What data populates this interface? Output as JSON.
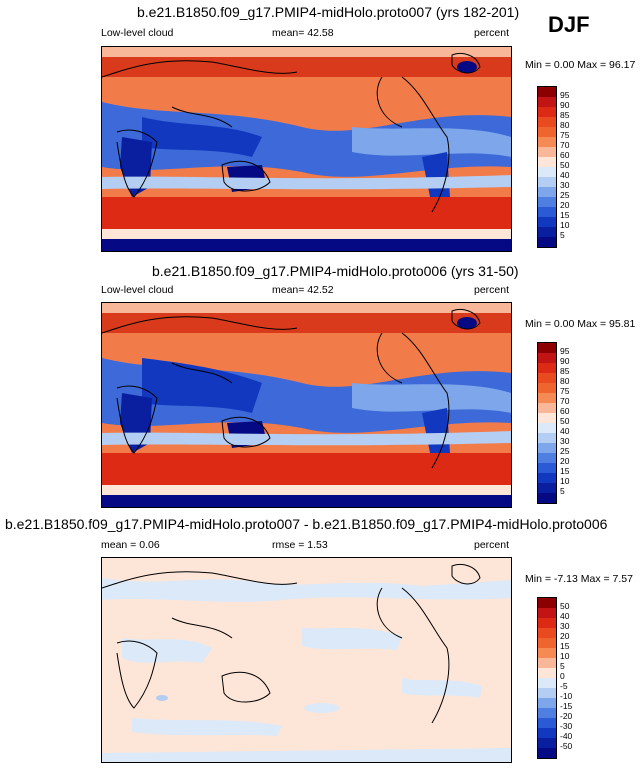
{
  "season": "DJF",
  "panels": [
    {
      "title": "b.e21.B1850.f09_g17.PMIP4-midHolo.proto007 (yrs 182-201)",
      "left_label": "Low-level cloud",
      "center_label": "mean=  42.58",
      "right_label": "percent",
      "minmax": "Min =   0.00 Max =  96.17",
      "colorbar_ticks": [
        "95",
        "90",
        "85",
        "80",
        "75",
        "70",
        "60",
        "50",
        "40",
        "30",
        "25",
        "20",
        "15",
        "10",
        "5"
      ],
      "colorbar_colors": [
        "#8b0000",
        "#c21414",
        "#dc2a14",
        "#ea4a1f",
        "#f0652f",
        "#f58a55",
        "#f9b79a",
        "#fde6d8",
        "#dce9f9",
        "#b4cdf2",
        "#7ea6ea",
        "#4f7fe0",
        "#2a5ad4",
        "#1338c0",
        "#0a1fa0",
        "#050a84"
      ]
    },
    {
      "title": "b.e21.B1850.f09_g17.PMIP4-midHolo.proto006 (yrs 31-50)",
      "left_label": "Low-level cloud",
      "center_label": "mean=  42.52",
      "right_label": "percent",
      "minmax": "Min =   0.00 Max =  95.81",
      "colorbar_ticks": [
        "95",
        "90",
        "85",
        "80",
        "75",
        "70",
        "60",
        "50",
        "40",
        "30",
        "25",
        "20",
        "15",
        "10",
        "5"
      ],
      "colorbar_colors": [
        "#8b0000",
        "#c21414",
        "#dc2a14",
        "#ea4a1f",
        "#f0652f",
        "#f58a55",
        "#f9b79a",
        "#fde6d8",
        "#dce9f9",
        "#b4cdf2",
        "#7ea6ea",
        "#4f7fe0",
        "#2a5ad4",
        "#1338c0",
        "#0a1fa0",
        "#050a84"
      ]
    },
    {
      "title": "b.e21.B1850.f09_g17.PMIP4-midHolo.proto007 - b.e21.B1850.f09_g17.PMIP4-midHolo.proto006",
      "left_label": "mean =   0.06",
      "center_label": "rmse =   1.53",
      "right_label": "percent",
      "minmax": "Min =  -7.13 Max =   7.57",
      "colorbar_ticks": [
        "50",
        "40",
        "30",
        "20",
        "15",
        "10",
        "5",
        "0",
        "-5",
        "-10",
        "-15",
        "-20",
        "-30",
        "-40",
        "-50"
      ],
      "colorbar_colors": [
        "#8b0000",
        "#c21414",
        "#dc2a14",
        "#ea4a1f",
        "#f0652f",
        "#f58a55",
        "#f9b79a",
        "#fde6d8",
        "#dce9f9",
        "#b4cdf2",
        "#7ea6ea",
        "#4f7fe0",
        "#2a5ad4",
        "#1338c0",
        "#0a1fa0",
        "#050a84"
      ]
    }
  ]
}
